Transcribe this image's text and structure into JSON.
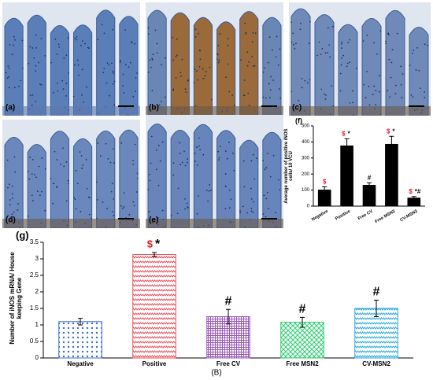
{
  "panels": [
    "(a)",
    "(b)",
    "(c)",
    "(d)",
    "(e)"
  ],
  "figure_label": "(B)",
  "chart_data": [
    {
      "type": "bar",
      "label": "(f)",
      "ylabel": "Average number of positive iNOS cells/ 10 VCU",
      "categories": [
        "Negative",
        "Positive",
        "Free CV",
        "Free MSN2",
        "CV-MSN2"
      ],
      "values": [
        100,
        375,
        130,
        385,
        50
      ],
      "errors": [
        20,
        45,
        15,
        50,
        10
      ],
      "sig_dollar": [
        "$",
        "$",
        null,
        "$",
        "$"
      ],
      "sig_other": [
        null,
        "*",
        "#",
        "*",
        "*#"
      ],
      "color": "#000000",
      "ylim": [
        0,
        500
      ],
      "yticks": [
        0,
        100,
        200,
        300,
        400,
        500
      ]
    },
    {
      "type": "bar",
      "label": "(g)",
      "ylabel": "Number of iNOS mRNA/ House keeping Gene",
      "categories": [
        "Negative",
        "Positive",
        "Free CV",
        "Free MSN2",
        "CV-MSN2"
      ],
      "values": [
        1.1,
        3.13,
        1.25,
        1.08,
        1.5
      ],
      "errors": [
        0.1,
        0.06,
        0.22,
        0.15,
        0.25
      ],
      "sig_dollar": [
        null,
        "$",
        null,
        null,
        null
      ],
      "sig_other": [
        null,
        "*",
        "#",
        "#",
        "#"
      ],
      "colors": [
        "#3a6fc4",
        "#e8505b",
        "#9b59b6",
        "#2ecc71",
        "#29a9e0"
      ],
      "patterns": [
        "dots",
        "zigzag",
        "grid",
        "crosshatch",
        "zigzag"
      ],
      "ylim": [
        0,
        3.5
      ],
      "yticks": [
        0,
        0.5,
        1,
        1.5,
        2,
        2.5,
        3,
        3.5
      ]
    }
  ]
}
